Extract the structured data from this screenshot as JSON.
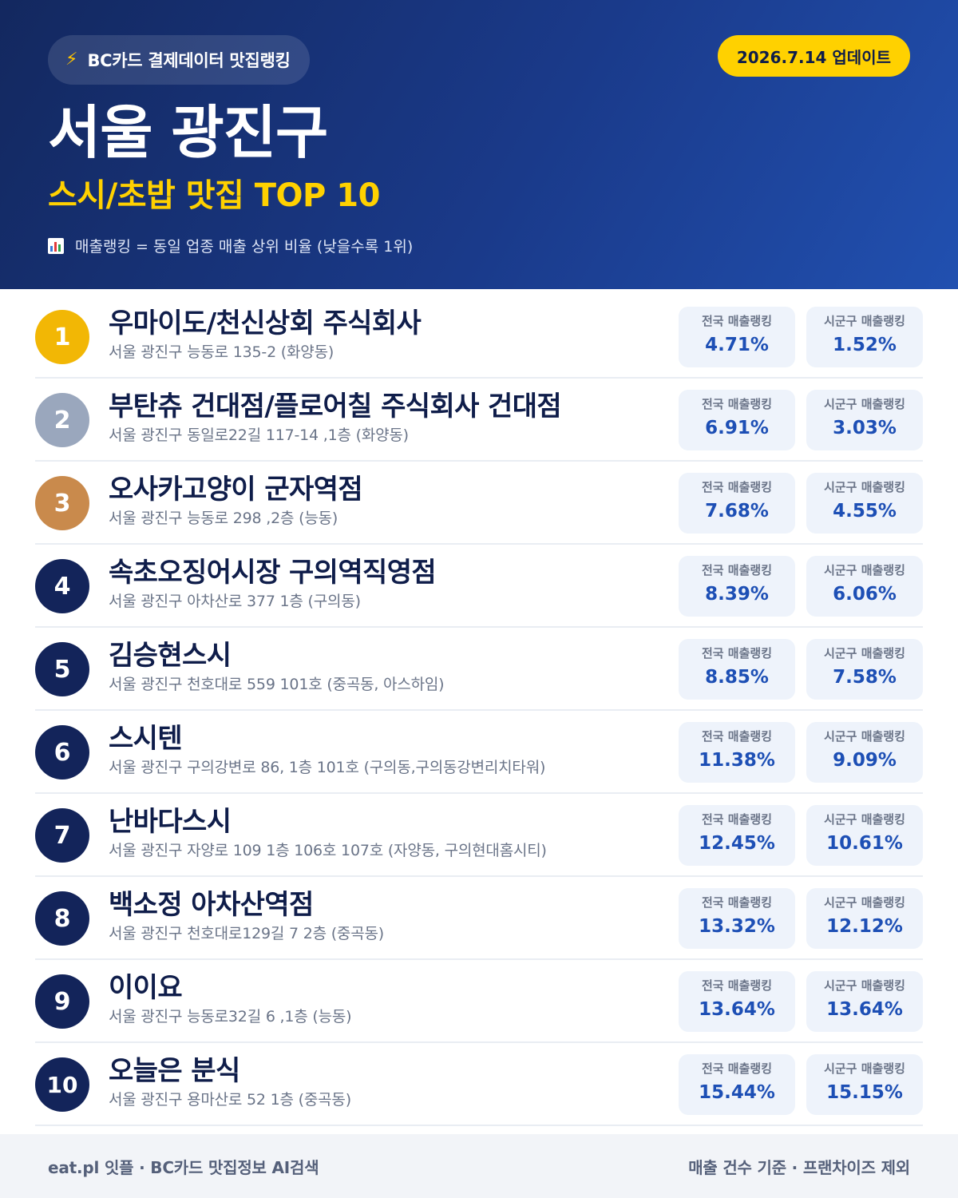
{
  "header": {
    "source_label": "BC카드 결제데이터 맛집랭킹",
    "source_icon": "lightning-bolt-icon",
    "update_label": "2026.7.14 업데이트",
    "title": "서울 광진구",
    "subtitle": "스시/초밥 맛집 TOP 10",
    "note_icon": "bar-chart-icon",
    "note": "매출랭킹 = 동일 업종 매출 상위 비율 (낮을수록 1위)"
  },
  "labels": {
    "national": "전국 매출랭킹",
    "local": "시군구 매출랭킹"
  },
  "restaurants": [
    {
      "rank": "1",
      "name": "우마이도/천신상회 주식회사",
      "address": "서울 광진구 능동로 135-2 (화양동)",
      "national": "4.71%",
      "local": "1.52%"
    },
    {
      "rank": "2",
      "name": "부탄츄 건대점/플로어칠 주식회사 건대점",
      "address": "서울 광진구 동일로22길 117-14 ,1층 (화양동)",
      "national": "6.91%",
      "local": "3.03%"
    },
    {
      "rank": "3",
      "name": "오사카고양이 군자역점",
      "address": "서울 광진구 능동로 298 ,2층 (능동)",
      "national": "7.68%",
      "local": "4.55%"
    },
    {
      "rank": "4",
      "name": "속초오징어시장 구의역직영점",
      "address": "서울 광진구 아차산로 377 1층 (구의동)",
      "national": "8.39%",
      "local": "6.06%"
    },
    {
      "rank": "5",
      "name": "김승현스시",
      "address": "서울 광진구 천호대로 559 101호 (중곡동, 아스하임)",
      "national": "8.85%",
      "local": "7.58%"
    },
    {
      "rank": "6",
      "name": "스시텐",
      "address": "서울 광진구 구의강변로 86, 1층 101호 (구의동,구의동강변리치타워)",
      "national": "11.38%",
      "local": "9.09%"
    },
    {
      "rank": "7",
      "name": "난바다스시",
      "address": "서울 광진구 자양로 109 1층 106호 107호 (자양동, 구의현대홈시티)",
      "national": "12.45%",
      "local": "10.61%"
    },
    {
      "rank": "8",
      "name": "백소정 아차산역점",
      "address": "서울 광진구 천호대로129길 7 2층 (중곡동)",
      "national": "13.32%",
      "local": "12.12%"
    },
    {
      "rank": "9",
      "name": "이이요",
      "address": "서울 광진구 능동로32길 6 ,1층 (능동)",
      "national": "13.64%",
      "local": "13.64%"
    },
    {
      "rank": "10",
      "name": "오늘은 분식",
      "address": "서울 광진구 용마산로 52 1층 (중곡동)",
      "national": "15.44%",
      "local": "15.15%"
    }
  ],
  "colors": {
    "gold": "#f2b705",
    "silver": "#9aa7bd",
    "bronze": "#c98a4c",
    "navy": "#13245a",
    "accent_yellow": "#ffd100",
    "value_blue": "#1d4fb5"
  },
  "footer": {
    "left": "eat.pl 잇플 · BC카드 맛집정보 AI검색",
    "right": "매출 건수 기준 · 프랜차이즈 제외"
  }
}
